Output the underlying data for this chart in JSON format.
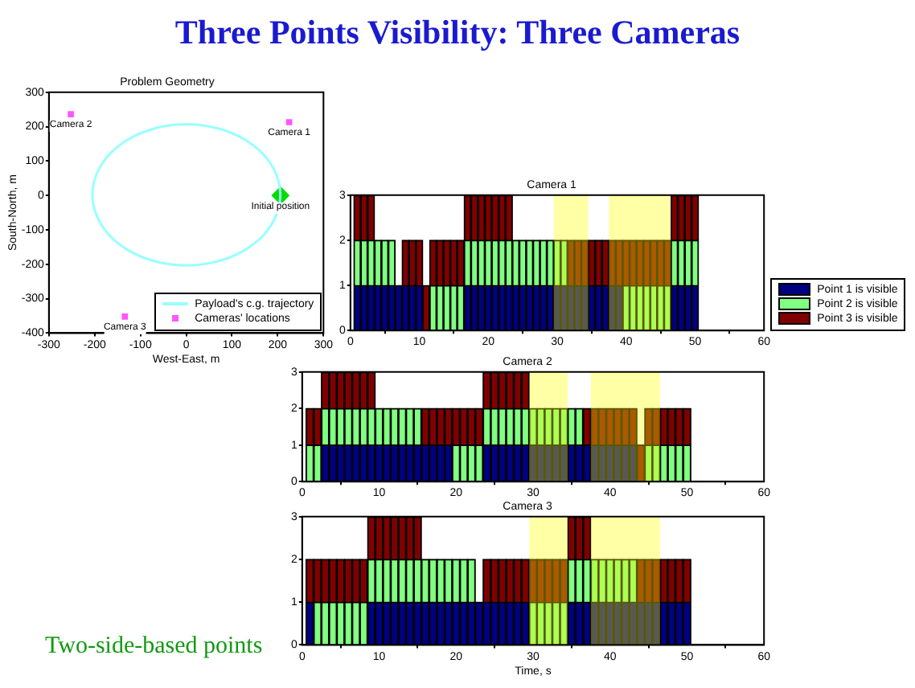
{
  "chart_data": [
    {
      "type": "scatter",
      "title": "Problem Geometry",
      "xlabel": "West-East, m",
      "ylabel": "South-North, m",
      "xlim": [
        -300,
        300
      ],
      "xticks": [
        -300,
        -200,
        -100,
        0,
        100,
        200,
        300
      ],
      "ylim": [
        -400,
        300
      ],
      "yticks": [
        -400,
        -300,
        -200,
        -100,
        0,
        100,
        200,
        300
      ],
      "legend": "bottom right",
      "annotations": [
        "Three Points Visibility: Three Cameras",
        "Two-side-based points",
        "Payload's c.g. trajectory",
        {
          "text": "Camera 1",
          "x": 225,
          "y": 213
        },
        {
          "text": "Camera 2",
          "x": -252,
          "y": 236
        },
        {
          "text": "Camera 3",
          "x": -134,
          "y": -352
        },
        {
          "text": "Initial position",
          "x": 206,
          "y": 0
        }
      ],
      "series": [
        {
          "type": "scatter",
          "name": "Cameras' locations",
          "color": "#ff55ff",
          "marker": "square",
          "x": [
            225,
            -252,
            -134
          ],
          "values": [
            213,
            236,
            -352
          ]
        },
        {
          "type": "scatter",
          "color": "#00dd00",
          "marker": "diamond",
          "x": [
            206
          ],
          "values": [
            0
          ]
        }
      ]
    },
    {
      "type": "bar",
      "title": "Camera 1",
      "xlim": [
        0,
        60
      ],
      "xticks": [
        0,
        10,
        20,
        30,
        40,
        50,
        60
      ],
      "ylim": [
        0,
        3
      ],
      "yticks": [
        0,
        1,
        2,
        3
      ],
      "legend": "bottom right",
      "x": [
        1,
        2,
        3,
        4,
        5,
        6,
        7,
        8,
        9,
        10,
        11,
        12,
        13,
        14,
        15,
        16,
        17,
        18,
        19,
        20,
        21,
        22,
        23,
        24,
        25,
        26,
        27,
        28,
        29,
        30,
        31,
        32,
        33,
        34,
        35,
        36,
        37,
        38,
        39,
        40,
        41,
        42,
        43,
        44,
        45,
        46,
        47,
        48,
        49,
        50
      ],
      "bands": [
        {
          "axis": "x",
          "from": 29.5,
          "to": 34.5,
          "color": "#ffff00"
        },
        {
          "axis": "x",
          "from": 37.5,
          "to": 46.5,
          "color": "#ffff00"
        }
      ],
      "series": [
        {
          "name": "Point 1 is visible",
          "color": "#000080",
          "values": [
            1,
            1,
            1,
            1,
            1,
            1,
            1,
            1,
            1,
            1,
            null,
            null,
            null,
            null,
            null,
            null,
            1,
            1,
            1,
            1,
            1,
            1,
            1,
            1,
            1,
            1,
            1,
            1,
            1,
            1,
            1,
            1,
            1,
            1,
            1,
            1,
            1,
            1,
            1,
            null,
            null,
            null,
            null,
            null,
            null,
            null,
            1,
            1,
            1,
            1
          ],
          "base": [
            0,
            0,
            0,
            0,
            0,
            0,
            0,
            0,
            0,
            0,
            null,
            null,
            null,
            null,
            null,
            null,
            0,
            0,
            0,
            0,
            0,
            0,
            0,
            0,
            0,
            0,
            0,
            0,
            0,
            0,
            0,
            0,
            0,
            0,
            0,
            0,
            0,
            0,
            0,
            null,
            null,
            null,
            null,
            null,
            null,
            null,
            0,
            0,
            0,
            0
          ]
        },
        {
          "name": "Point 2 is visible",
          "color": "#80ff80",
          "values": [
            1,
            1,
            1,
            1,
            1,
            1,
            null,
            null,
            null,
            null,
            null,
            1,
            1,
            1,
            1,
            1,
            1,
            1,
            1,
            1,
            1,
            1,
            1,
            1,
            1,
            1,
            1,
            1,
            1,
            1,
            1,
            null,
            null,
            null,
            null,
            null,
            null,
            null,
            null,
            1,
            1,
            1,
            1,
            1,
            1,
            1,
            1,
            1,
            1,
            1
          ],
          "base": [
            1,
            1,
            1,
            1,
            1,
            1,
            null,
            null,
            null,
            null,
            null,
            0,
            0,
            0,
            0,
            0,
            1,
            1,
            1,
            1,
            1,
            1,
            1,
            1,
            1,
            1,
            1,
            1,
            1,
            1,
            1,
            null,
            null,
            null,
            null,
            null,
            null,
            null,
            null,
            0,
            0,
            0,
            0,
            0,
            0,
            0,
            1,
            1,
            1,
            1
          ]
        },
        {
          "name": "Point 3 is visible",
          "color": "#800000",
          "values": [
            1,
            1,
            1,
            null,
            null,
            null,
            null,
            1,
            1,
            1,
            1,
            1,
            1,
            1,
            1,
            1,
            1,
            1,
            1,
            1,
            1,
            1,
            1,
            null,
            null,
            null,
            null,
            null,
            null,
            null,
            null,
            1,
            1,
            1,
            1,
            1,
            1,
            1,
            1,
            1,
            1,
            1,
            1,
            1,
            1,
            1,
            1,
            1,
            1,
            1
          ],
          "base": [
            2,
            2,
            2,
            null,
            null,
            null,
            null,
            1,
            1,
            1,
            0,
            1,
            1,
            1,
            1,
            1,
            2,
            2,
            2,
            2,
            2,
            2,
            2,
            null,
            null,
            null,
            null,
            null,
            null,
            null,
            null,
            1,
            1,
            1,
            1,
            1,
            1,
            1,
            1,
            1,
            1,
            1,
            1,
            1,
            1,
            1,
            2,
            2,
            2,
            2
          ]
        }
      ]
    },
    {
      "type": "bar",
      "title": "Camera 2",
      "xlim": [
        0,
        60
      ],
      "xticks": [
        0,
        10,
        20,
        30,
        40,
        50,
        60
      ],
      "ylim": [
        0,
        3
      ],
      "yticks": [
        0,
        1,
        2,
        3
      ],
      "x": [
        1,
        2,
        3,
        4,
        5,
        6,
        7,
        8,
        9,
        10,
        11,
        12,
        13,
        14,
        15,
        16,
        17,
        18,
        19,
        20,
        21,
        22,
        23,
        24,
        25,
        26,
        27,
        28,
        29,
        30,
        31,
        32,
        33,
        34,
        35,
        36,
        37,
        38,
        39,
        40,
        41,
        42,
        43,
        44,
        45,
        46,
        47,
        48,
        49,
        50
      ],
      "bands": [
        {
          "axis": "x",
          "from": 29.5,
          "to": 34.5,
          "color": "#ffff00"
        },
        {
          "axis": "x",
          "from": 37.5,
          "to": 46.5,
          "color": "#ffff00"
        }
      ],
      "series": [
        {
          "color": "#000080",
          "values": [
            null,
            null,
            1,
            1,
            1,
            1,
            1,
            1,
            1,
            1,
            1,
            1,
            1,
            1,
            1,
            1,
            1,
            1,
            1,
            null,
            null,
            null,
            null,
            1,
            1,
            1,
            1,
            1,
            1,
            1,
            1,
            1,
            1,
            1,
            1,
            1,
            1,
            1,
            1,
            1,
            1,
            1,
            1,
            null,
            null,
            null,
            null,
            null,
            null,
            null
          ],
          "base": [
            null,
            null,
            0,
            0,
            0,
            0,
            0,
            0,
            0,
            0,
            0,
            0,
            0,
            0,
            0,
            0,
            0,
            0,
            0,
            null,
            null,
            null,
            null,
            0,
            0,
            0,
            0,
            0,
            0,
            0,
            0,
            0,
            0,
            0,
            0,
            0,
            0,
            0,
            0,
            0,
            0,
            0,
            0,
            null,
            null,
            null,
            null,
            null,
            null,
            null
          ]
        },
        {
          "color": "#80ff80",
          "values": [
            1,
            1,
            1,
            1,
            1,
            1,
            1,
            1,
            1,
            1,
            1,
            1,
            1,
            1,
            1,
            null,
            null,
            null,
            null,
            1,
            1,
            1,
            1,
            1,
            1,
            1,
            1,
            1,
            1,
            1,
            1,
            1,
            1,
            1,
            1,
            1,
            null,
            null,
            null,
            null,
            null,
            null,
            null,
            null,
            1,
            1,
            1,
            1,
            1,
            1
          ],
          "base": [
            0,
            0,
            1,
            1,
            1,
            1,
            1,
            1,
            1,
            1,
            1,
            1,
            1,
            1,
            1,
            null,
            null,
            null,
            null,
            0,
            0,
            0,
            0,
            1,
            1,
            1,
            1,
            1,
            1,
            1,
            1,
            1,
            1,
            1,
            1,
            1,
            null,
            null,
            null,
            null,
            null,
            null,
            null,
            null,
            0,
            0,
            0,
            0,
            0,
            0
          ]
        },
        {
          "color": "#800000",
          "values": [
            1,
            1,
            1,
            1,
            1,
            1,
            1,
            1,
            1,
            null,
            null,
            null,
            null,
            null,
            null,
            1,
            1,
            1,
            1,
            1,
            1,
            1,
            1,
            1,
            1,
            1,
            1,
            1,
            1,
            null,
            null,
            null,
            null,
            null,
            null,
            null,
            1,
            1,
            1,
            1,
            1,
            1,
            1,
            1,
            1,
            1,
            1,
            1,
            1,
            1
          ],
          "base": [
            1,
            1,
            2,
            2,
            2,
            2,
            2,
            2,
            2,
            null,
            null,
            null,
            null,
            null,
            null,
            1,
            1,
            1,
            1,
            1,
            1,
            1,
            1,
            2,
            2,
            2,
            2,
            2,
            2,
            null,
            null,
            null,
            null,
            null,
            null,
            null,
            1,
            1,
            1,
            1,
            1,
            1,
            1,
            0,
            1,
            1,
            1,
            1,
            1,
            1
          ]
        }
      ]
    },
    {
      "type": "bar",
      "title": "Camera 3",
      "xlabel": "Time, s",
      "xlim": [
        0,
        60
      ],
      "xticks": [
        0,
        10,
        20,
        30,
        40,
        50,
        60
      ],
      "ylim": [
        0,
        3
      ],
      "yticks": [
        0,
        1,
        2,
        3
      ],
      "x": [
        1,
        2,
        3,
        4,
        5,
        6,
        7,
        8,
        9,
        10,
        11,
        12,
        13,
        14,
        15,
        16,
        17,
        18,
        19,
        20,
        21,
        22,
        23,
        24,
        25,
        26,
        27,
        28,
        29,
        30,
        31,
        32,
        33,
        34,
        35,
        36,
        37,
        38,
        39,
        40,
        41,
        42,
        43,
        44,
        45,
        46,
        47,
        48,
        49,
        50
      ],
      "bands": [
        {
          "axis": "x",
          "from": 29.5,
          "to": 34.5,
          "color": "#ffff00"
        },
        {
          "axis": "x",
          "from": 37.5,
          "to": 46.5,
          "color": "#ffff00"
        }
      ],
      "series": [
        {
          "color": "#000080",
          "values": [
            1,
            null,
            null,
            null,
            null,
            null,
            null,
            null,
            1,
            1,
            1,
            1,
            1,
            1,
            1,
            1,
            1,
            1,
            1,
            1,
            1,
            1,
            1,
            1,
            1,
            1,
            1,
            1,
            1,
            null,
            null,
            null,
            null,
            null,
            1,
            1,
            1,
            1,
            1,
            1,
            1,
            1,
            1,
            1,
            1,
            1,
            1,
            1,
            1,
            1
          ],
          "base": [
            0,
            null,
            null,
            null,
            null,
            null,
            null,
            null,
            0,
            0,
            0,
            0,
            0,
            0,
            0,
            0,
            0,
            0,
            0,
            0,
            0,
            0,
            0,
            0,
            0,
            0,
            0,
            0,
            0,
            null,
            null,
            null,
            null,
            null,
            0,
            0,
            0,
            0,
            0,
            0,
            0,
            0,
            0,
            0,
            0,
            0,
            0,
            0,
            0,
            0
          ]
        },
        {
          "color": "#80ff80",
          "values": [
            null,
            1,
            1,
            1,
            1,
            1,
            1,
            1,
            1,
            1,
            1,
            1,
            1,
            1,
            1,
            1,
            1,
            1,
            1,
            1,
            1,
            1,
            null,
            null,
            null,
            null,
            null,
            null,
            null,
            1,
            1,
            1,
            1,
            1,
            1,
            1,
            1,
            1,
            1,
            1,
            1,
            1,
            1,
            null,
            null,
            null,
            null,
            null,
            null,
            null
          ],
          "base": [
            null,
            0,
            0,
            0,
            0,
            0,
            0,
            0,
            1,
            1,
            1,
            1,
            1,
            1,
            1,
            1,
            1,
            1,
            1,
            1,
            1,
            1,
            null,
            null,
            null,
            null,
            null,
            null,
            null,
            0,
            0,
            0,
            0,
            0,
            1,
            1,
            1,
            1,
            1,
            1,
            1,
            1,
            1,
            null,
            null,
            null,
            null,
            null,
            null,
            null
          ]
        },
        {
          "color": "#800000",
          "values": [
            1,
            1,
            1,
            1,
            1,
            1,
            1,
            1,
            1,
            1,
            1,
            1,
            1,
            1,
            1,
            null,
            null,
            null,
            null,
            null,
            null,
            null,
            null,
            1,
            1,
            1,
            1,
            1,
            1,
            1,
            1,
            1,
            1,
            1,
            1,
            1,
            1,
            null,
            null,
            null,
            null,
            null,
            null,
            1,
            1,
            1,
            1,
            1,
            1,
            1
          ],
          "base": [
            1,
            1,
            1,
            1,
            1,
            1,
            1,
            1,
            2,
            2,
            2,
            2,
            2,
            2,
            2,
            null,
            null,
            null,
            null,
            null,
            null,
            null,
            null,
            1,
            1,
            1,
            1,
            1,
            1,
            1,
            1,
            1,
            1,
            1,
            2,
            2,
            2,
            null,
            null,
            null,
            null,
            null,
            null,
            1,
            1,
            1,
            1,
            1,
            1,
            1
          ]
        }
      ]
    }
  ]
}
